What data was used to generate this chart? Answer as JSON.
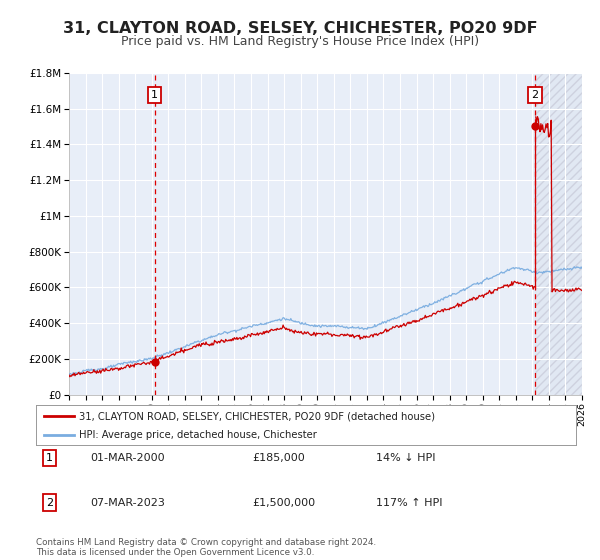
{
  "title": "31, CLAYTON ROAD, SELSEY, CHICHESTER, PO20 9DF",
  "subtitle": "Price paid vs. HM Land Registry's House Price Index (HPI)",
  "title_fontsize": 11.5,
  "subtitle_fontsize": 9,
  "background_color": "#ffffff",
  "plot_bg_color": "#e8eef8",
  "grid_color": "#ffffff",
  "sale1_date_num": 2000.17,
  "sale1_price": 185000,
  "sale2_date_num": 2023.17,
  "sale2_price": 1500000,
  "xmin": 1995,
  "xmax": 2026,
  "ymin": 0,
  "ymax": 1800000,
  "yticks": [
    0,
    200000,
    400000,
    600000,
    800000,
    1000000,
    1200000,
    1400000,
    1600000,
    1800000
  ],
  "ytick_labels": [
    "£0",
    "£200K",
    "£400K",
    "£600K",
    "£800K",
    "£1M",
    "£1.2M",
    "£1.4M",
    "£1.6M",
    "£1.8M"
  ],
  "xticks": [
    1995,
    1996,
    1997,
    1998,
    1999,
    2000,
    2001,
    2002,
    2003,
    2004,
    2005,
    2006,
    2007,
    2008,
    2009,
    2010,
    2011,
    2012,
    2013,
    2014,
    2015,
    2016,
    2017,
    2018,
    2019,
    2020,
    2021,
    2022,
    2023,
    2024,
    2025,
    2026
  ],
  "red_line_color": "#cc0000",
  "blue_line_color": "#7aade0",
  "vline_color": "#dd0000",
  "marker_color": "#cc0000",
  "legend_label1": "31, CLAYTON ROAD, SELSEY, CHICHESTER, PO20 9DF (detached house)",
  "legend_label2": "HPI: Average price, detached house, Chichester",
  "note_text": "Contains HM Land Registry data © Crown copyright and database right 2024.\nThis data is licensed under the Open Government Licence v3.0.",
  "table_row1": [
    "1",
    "01-MAR-2000",
    "£185,000",
    "14% ↓ HPI"
  ],
  "table_row2": [
    "2",
    "07-MAR-2023",
    "£1,500,000",
    "117% ↑ HPI"
  ]
}
